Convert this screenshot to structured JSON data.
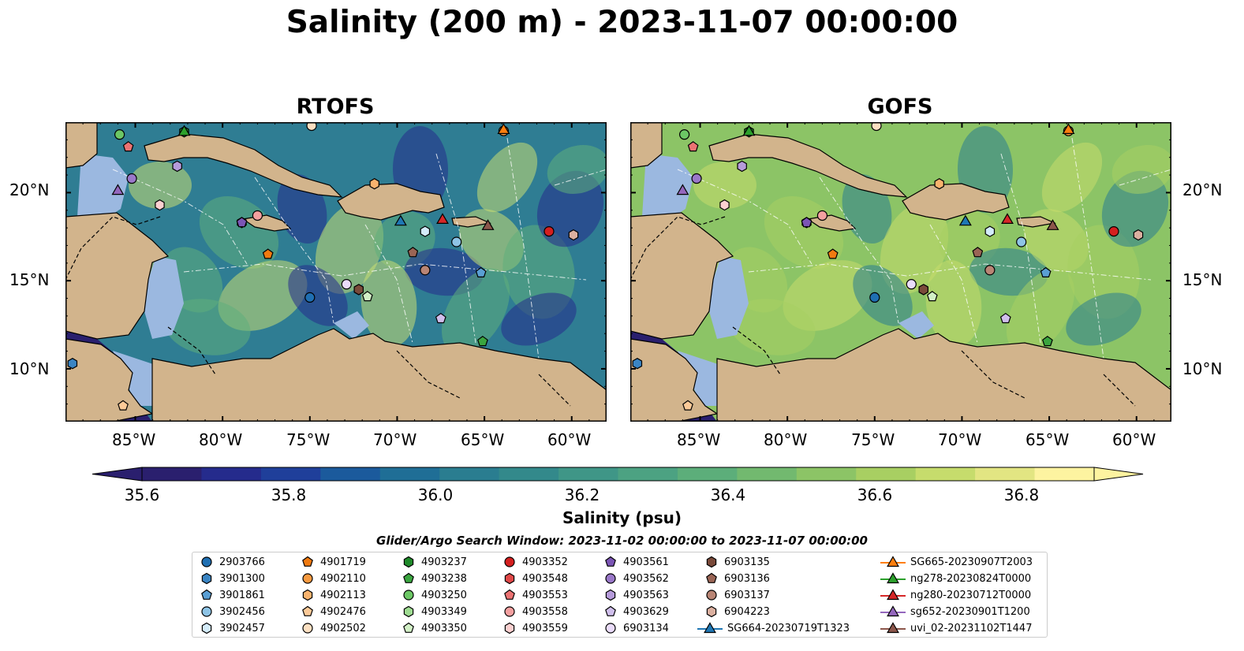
{
  "title": "Salinity (200 m) - 2023-11-07 00:00:00",
  "panels": [
    {
      "title": "RTOFS"
    },
    {
      "title": "GOFS"
    }
  ],
  "axes": {
    "lon_ticks": [
      "85°W",
      "80°W",
      "75°W",
      "70°W",
      "65°W",
      "60°W"
    ],
    "lat_ticks": [
      "20°N",
      "15°N",
      "10°N"
    ]
  },
  "colorbar": {
    "label": "Salinity (psu)",
    "ticks": [
      "35.6",
      "35.8",
      "36.0",
      "36.2",
      "36.4",
      "36.6",
      "36.8"
    ],
    "colors": [
      "#2a1f6e",
      "#252b8c",
      "#1f3f9a",
      "#1b5a9c",
      "#1f6e96",
      "#2a7d90",
      "#33898b",
      "#3f9687",
      "#4ca282",
      "#5cae7a",
      "#72b96f",
      "#8cc466",
      "#a8cf62",
      "#c6dc6c",
      "#e2e582",
      "#fdf3a0"
    ]
  },
  "legend": {
    "title": "Glider/Argo Search Window: 2023-11-02 00:00:00 to 2023-11-07 00:00:00",
    "items": [
      {
        "label": "2903766",
        "color": "#1f6fb2",
        "marker": "circle"
      },
      {
        "label": "3901300",
        "color": "#3a85c4",
        "marker": "hexagon"
      },
      {
        "label": "3901861",
        "color": "#5a9fd4",
        "marker": "pentagon"
      },
      {
        "label": "3902456",
        "color": "#8ec4e6",
        "marker": "circle"
      },
      {
        "label": "3902457",
        "color": "#d4ecfa",
        "marker": "hexagon"
      },
      {
        "label": "4901719",
        "color": "#f07a10",
        "marker": "pentagon"
      },
      {
        "label": "4902110",
        "color": "#f79a40",
        "marker": "circle"
      },
      {
        "label": "4902113",
        "color": "#f9b36e",
        "marker": "hexagon"
      },
      {
        "label": "4902476",
        "color": "#fcca98",
        "marker": "pentagon"
      },
      {
        "label": "4902502",
        "color": "#fde0c2",
        "marker": "circle"
      },
      {
        "label": "4903237",
        "color": "#1f8a2a",
        "marker": "hexagon"
      },
      {
        "label": "4903238",
        "color": "#3aa53f",
        "marker": "pentagon"
      },
      {
        "label": "4903250",
        "color": "#6cc765",
        "marker": "circle"
      },
      {
        "label": "4903349",
        "color": "#9fdc92",
        "marker": "hexagon"
      },
      {
        "label": "4903350",
        "color": "#d2f0c6",
        "marker": "pentagon"
      },
      {
        "label": "4903352",
        "color": "#d41f1f",
        "marker": "circle"
      },
      {
        "label": "4903548",
        "color": "#e04848",
        "marker": "hexagon"
      },
      {
        "label": "4903553",
        "color": "#ec7373",
        "marker": "pentagon"
      },
      {
        "label": "4903558",
        "color": "#f4a0a0",
        "marker": "circle"
      },
      {
        "label": "4903559",
        "color": "#fbd0d0",
        "marker": "hexagon"
      },
      {
        "label": "4903561",
        "color": "#7b55b5",
        "marker": "pentagon"
      },
      {
        "label": "4903562",
        "color": "#9a78c9",
        "marker": "circle"
      },
      {
        "label": "4903563",
        "color": "#b69bdb",
        "marker": "hexagon"
      },
      {
        "label": "4903629",
        "color": "#d0bfec",
        "marker": "pentagon"
      },
      {
        "label": "6903134",
        "color": "#eadcfb",
        "marker": "circle"
      },
      {
        "label": "6903135",
        "color": "#7a4a3a",
        "marker": "hexagon"
      },
      {
        "label": "6903136",
        "color": "#9a6555",
        "marker": "pentagon"
      },
      {
        "label": "6903137",
        "color": "#b98575",
        "marker": "circle"
      },
      {
        "label": "6904223",
        "color": "#dbb0a0",
        "marker": "hexagon"
      },
      {
        "label": "SG664-20230719T1323",
        "color": "#1f77b4",
        "marker": "triangle-line"
      },
      {
        "label": "SG665-20230907T2003",
        "color": "#ff7f0e",
        "marker": "triangle-line"
      },
      {
        "label": "ng278-20230824T0000",
        "color": "#2ca02c",
        "marker": "triangle-line"
      },
      {
        "label": "ng280-20230712T0000",
        "color": "#d62728",
        "marker": "triangle-line"
      },
      {
        "label": "sg652-20230901T1200",
        "color": "#9467bd",
        "marker": "triangle-line"
      },
      {
        "label": "uvi_02-20231102T1447",
        "color": "#8c564b",
        "marker": "triangle-line"
      }
    ]
  },
  "map_data": {
    "extent": {
      "lon": [
        -89,
        -58
      ],
      "lat": [
        7,
        24
      ]
    },
    "rtofs_colors": {
      "base": "#2f7d93",
      "high": "#c9df73",
      "mid": "#5fae7c",
      "low": "#252b8c"
    },
    "gofs_colors": {
      "base": "#8cc466",
      "high": "#c6dc6c",
      "mid": "#a8cf62",
      "low": "#2a7d90"
    },
    "land_color": "#d2b48c",
    "shelf_color": "#9bb8e0",
    "pacific_color": "#2a1f6e",
    "observations": [
      {
        "id": "2903766",
        "lon": -75.0,
        "lat": 14.05
      },
      {
        "id": "3901300",
        "lon": -88.6,
        "lat": 10.3
      },
      {
        "id": "3901861",
        "lon": -65.2,
        "lat": 15.45
      },
      {
        "id": "3902456",
        "lon": -66.6,
        "lat": 17.2
      },
      {
        "id": "3902457",
        "lon": -68.4,
        "lat": 17.8
      },
      {
        "id": "4901719",
        "lon": -77.4,
        "lat": 16.5
      },
      {
        "id": "4902110",
        "lon": -63.9,
        "lat": 23.5
      },
      {
        "id": "4902113",
        "lon": -71.3,
        "lat": 20.5
      },
      {
        "id": "4902476",
        "lon": -85.7,
        "lat": 7.9
      },
      {
        "id": "4902502",
        "lon": -74.9,
        "lat": 23.8
      },
      {
        "id": "4903237",
        "lon": -82.2,
        "lat": 23.45
      },
      {
        "id": "4903238",
        "lon": -65.1,
        "lat": 11.55
      },
      {
        "id": "4903250",
        "lon": -85.9,
        "lat": 23.3
      },
      {
        "id": "4903349",
        "lon": -78.9,
        "lat": 18.3
      },
      {
        "id": "4903350",
        "lon": -71.7,
        "lat": 14.1
      },
      {
        "id": "4903352",
        "lon": -61.3,
        "lat": 17.8
      },
      {
        "id": "4903548",
        "lon": -72.2,
        "lat": 14.5
      },
      {
        "id": "4903553",
        "lon": -85.4,
        "lat": 22.6
      },
      {
        "id": "4903558",
        "lon": -78.0,
        "lat": 18.7
      },
      {
        "id": "4903559",
        "lon": -83.6,
        "lat": 19.3
      },
      {
        "id": "4903561",
        "lon": -78.9,
        "lat": 18.3
      },
      {
        "id": "4903562",
        "lon": -85.2,
        "lat": 20.8
      },
      {
        "id": "4903563",
        "lon": -82.6,
        "lat": 21.5
      },
      {
        "id": "4903629",
        "lon": -67.5,
        "lat": 12.85
      },
      {
        "id": "6903134",
        "lon": -72.9,
        "lat": 14.8
      },
      {
        "id": "6903135",
        "lon": -72.2,
        "lat": 14.5
      },
      {
        "id": "6903136",
        "lon": -69.1,
        "lat": 16.6
      },
      {
        "id": "6903137",
        "lon": -68.4,
        "lat": 15.6
      },
      {
        "id": "6904223",
        "lon": -59.9,
        "lat": 17.6
      },
      {
        "id": "SG664-20230719T1323",
        "lon": -69.8,
        "lat": 18.4
      },
      {
        "id": "SG665-20230907T2003",
        "lon": -63.9,
        "lat": 23.6
      },
      {
        "id": "ng278-20230824T0000",
        "lon": -82.2,
        "lat": 23.5
      },
      {
        "id": "ng280-20230712T0000",
        "lon": -67.4,
        "lat": 18.5
      },
      {
        "id": "sg652-20230901T1200",
        "lon": -86.0,
        "lat": 20.15
      },
      {
        "id": "uvi_02-20231102T1447",
        "lon": -64.8,
        "lat": 18.15
      }
    ]
  }
}
